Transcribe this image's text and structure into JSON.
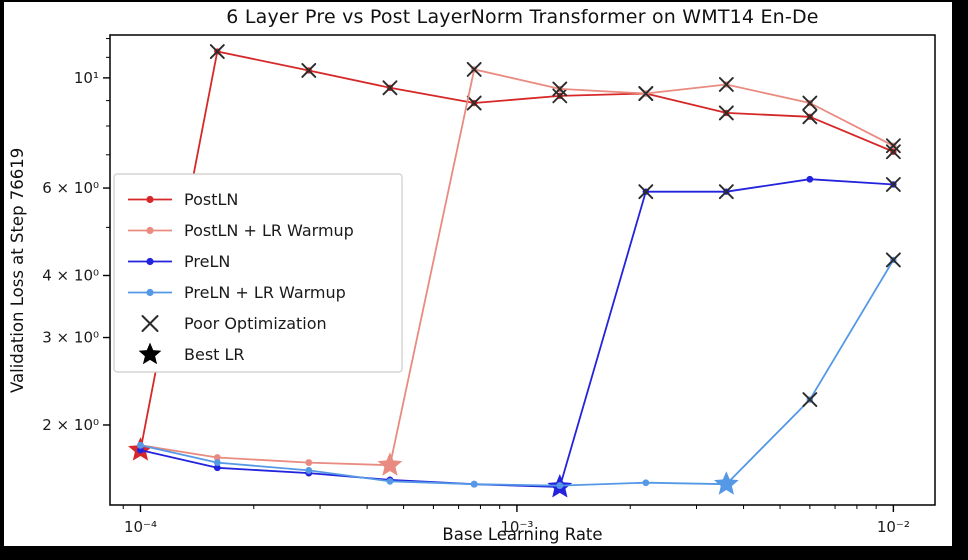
{
  "chart_data": {
    "type": "line",
    "title": "6 Layer Pre vs Post LayerNorm Transformer on WMT14 En-De",
    "xlabel": "Base Learning Rate",
    "ylabel": "Validation Loss at Step 76619",
    "xscale": "log",
    "yscale": "log",
    "xlim": [
      8.3e-05,
      0.0129
    ],
    "ylim": [
      1.38,
      12.2
    ],
    "grid": false,
    "legend_position": "center left",
    "x_ticks": [
      {
        "value": 0.0001,
        "label": "10⁻⁴"
      },
      {
        "value": 0.001,
        "label": "10⁻³"
      },
      {
        "value": 0.01,
        "label": "10⁻²"
      }
    ],
    "y_ticks": [
      {
        "value": 2,
        "label": "2 × 10⁰"
      },
      {
        "value": 3,
        "label": "3 × 10⁰"
      },
      {
        "value": 4,
        "label": "4 × 10⁰"
      },
      {
        "value": 6,
        "label": "6 × 10⁰"
      },
      {
        "value": 10,
        "label": "10¹"
      }
    ],
    "x": [
      0.0001,
      0.00016,
      0.00028,
      0.00046,
      0.00077,
      0.0013,
      0.0022,
      0.0036,
      0.006,
      0.01
    ],
    "series": [
      {
        "name": "PostLN",
        "color": "#d62828",
        "values": [
          1.78,
          11.3,
          10.35,
          9.55,
          8.9,
          9.2,
          9.3,
          8.5,
          8.35,
          7.1
        ],
        "markers": [
          "star",
          "x",
          "x",
          "x",
          "x",
          "x",
          "x",
          "x",
          "x",
          "x"
        ]
      },
      {
        "name": "PostLN + LR Warmup",
        "color": "#e98b80",
        "values": [
          1.82,
          1.72,
          1.68,
          1.66,
          10.4,
          9.5,
          9.3,
          9.7,
          8.9,
          7.3
        ],
        "markers": [
          "dot",
          "dot",
          "dot",
          "star",
          "x",
          "x",
          "x",
          "x",
          "x",
          "x"
        ]
      },
      {
        "name": "PreLN",
        "color": "#2323dd",
        "values": [
          1.78,
          1.64,
          1.6,
          1.55,
          1.52,
          1.5,
          5.9,
          5.9,
          6.25,
          6.1
        ],
        "markers": [
          "dot",
          "dot",
          "dot",
          "dot",
          "dot",
          "star",
          "x",
          "x",
          "dot",
          "x"
        ]
      },
      {
        "name": "PreLN + LR Warmup",
        "color": "#5599e6",
        "values": [
          1.82,
          1.68,
          1.62,
          1.54,
          1.52,
          1.51,
          1.53,
          1.52,
          2.25,
          4.3
        ],
        "markers": [
          "dot",
          "dot",
          "dot",
          "dot",
          "dot",
          "dot",
          "dot",
          "star",
          "x",
          "x"
        ]
      }
    ],
    "marker_legend": [
      {
        "label": "Poor Optimization",
        "marker": "x",
        "color": "#2b2b2b"
      },
      {
        "label": "Best LR",
        "marker": "star",
        "color": "#000000"
      }
    ]
  }
}
